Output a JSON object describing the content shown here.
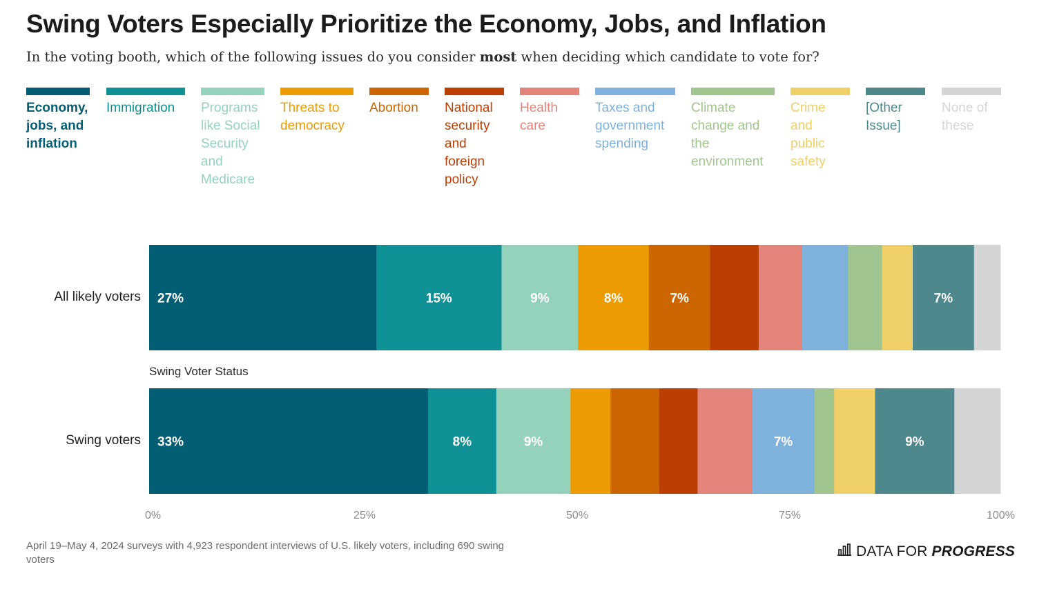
{
  "chart_data": {
    "type": "bar",
    "orientation": "horizontal",
    "stacked": true,
    "title": "Swing Voters Especially Prioritize the Economy, Jobs, and Inflation",
    "subtitle": {
      "before": "In the voting booth, which of the following issues do you consider ",
      "emphasis": "most",
      "after": " when deciding which candidate to vote for?"
    },
    "categories": [
      "All likely voters",
      "Swing voters"
    ],
    "group_label": "Swing Voter Status",
    "xlim": [
      0,
      100
    ],
    "x_ticks": [
      "0%",
      "25%",
      "50%",
      "75%",
      "100%"
    ],
    "legend_placement": "top",
    "series": [
      {
        "name": "Economy, jobs, and inflation",
        "color": "#035e74",
        "values": [
          26.7,
          32.7
        ]
      },
      {
        "name": "Immigration",
        "color": "#0f9195",
        "values": [
          14.7,
          8.0
        ]
      },
      {
        "name": "Programs like Social Security and Medicare",
        "color": "#95d2bc",
        "values": [
          9.0,
          8.7
        ]
      },
      {
        "name": "Threats to democracy",
        "color": "#ed9b02",
        "values": [
          8.3,
          4.7
        ]
      },
      {
        "name": "Abortion",
        "color": "#cc6602",
        "values": [
          7.2,
          5.7
        ]
      },
      {
        "name": "National security and foreign policy",
        "color": "#bb3e03",
        "values": [
          5.7,
          4.5
        ]
      },
      {
        "name": "Health care",
        "color": "#e3847a",
        "values": [
          5.1,
          6.4
        ]
      },
      {
        "name": "Taxes and government spending",
        "color": "#7fb1dd",
        "values": [
          5.4,
          7.3
        ]
      },
      {
        "name": "Climate change and the environment",
        "color": "#a0c58e",
        "values": [
          4.0,
          2.3
        ]
      },
      {
        "name": "Crime and public safety",
        "color": "#efcf68",
        "values": [
          3.6,
          4.8
        ]
      },
      {
        "name": "[Other Issue]",
        "color": "#4e878c",
        "values": [
          7.2,
          9.3
        ]
      },
      {
        "name": "None of these",
        "color": "#d2d4d5",
        "values": [
          3.1,
          5.4
        ]
      }
    ],
    "data_labels": [
      [
        "27%",
        "15%",
        "9%",
        "8%",
        "7%",
        "",
        "",
        "",
        "",
        "",
        "7%",
        ""
      ],
      [
        "33%",
        "8%",
        "9%",
        "",
        "",
        "",
        "",
        "7%",
        "",
        "",
        "9%",
        ""
      ]
    ]
  },
  "legend_labels": [
    "Economy, jobs, and inflation",
    "Immigration",
    "Programs like Social Security and Medicare",
    "Threats to democracy",
    "Abortion",
    "National security and foreign policy",
    "Health care",
    "Taxes and government spending",
    "Climate change and the environment",
    "Crime and public safety",
    "[Other Issue]",
    "None of these"
  ],
  "footer": {
    "source": "April 19–May 4, 2024 surveys with 4,923 respondent interviews of U.S. likely voters, including 690 swing voters",
    "logo_regular": "DATA FOR",
    "logo_bold": "PROGRESS"
  }
}
